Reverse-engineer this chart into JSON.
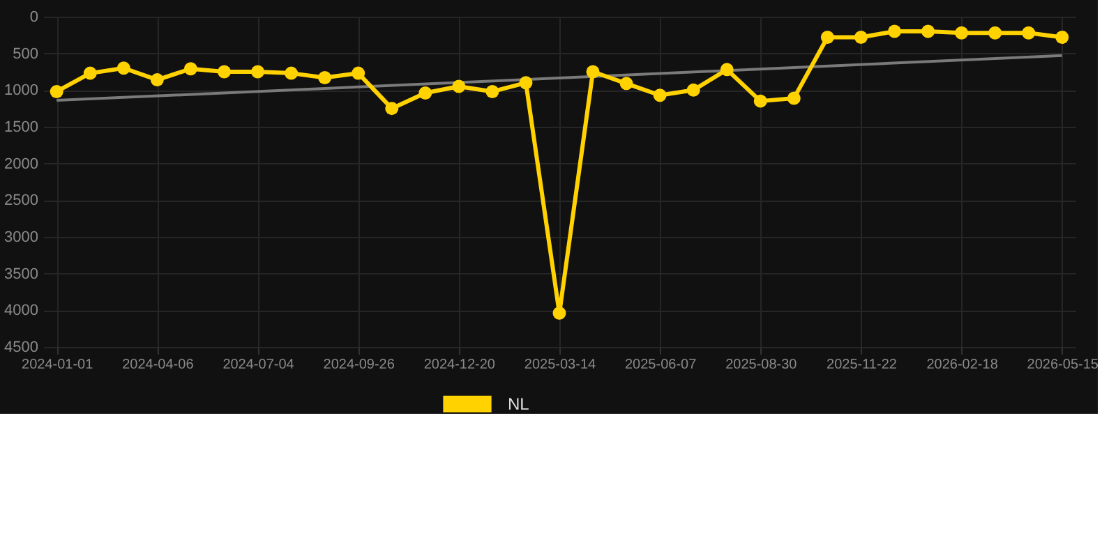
{
  "chart_data": {
    "type": "line",
    "categories": [
      "2024-01-01",
      null,
      null,
      "2024-04-06",
      null,
      null,
      "2024-07-04",
      null,
      null,
      "2024-09-26",
      null,
      null,
      "2024-12-20",
      null,
      null,
      "2025-03-14",
      null,
      null,
      "2025-06-07",
      null,
      null,
      "2025-08-30",
      null,
      null,
      "2025-11-22",
      null,
      null,
      "2026-02-18",
      null,
      null,
      "2026-05-15"
    ],
    "series": [
      {
        "name": "NL",
        "color": "#ffd200",
        "marker": "circle",
        "values": [
          1020,
          770,
          700,
          860,
          710,
          750,
          750,
          770,
          830,
          770,
          1250,
          1040,
          950,
          1020,
          900,
          4040,
          750,
          910,
          1070,
          1000,
          720,
          1150,
          1110,
          280,
          280,
          200,
          200,
          220,
          220,
          220,
          280
        ]
      },
      {
        "type": "line",
        "color": "#7a7a7a",
        "values": [
          1140,
          null,
          null,
          null,
          null,
          null,
          null,
          null,
          null,
          null,
          null,
          null,
          null,
          null,
          null,
          null,
          null,
          null,
          null,
          null,
          null,
          null,
          null,
          null,
          null,
          null,
          null,
          null,
          null,
          null,
          530
        ]
      }
    ],
    "ylim": [
      4500,
      0
    ],
    "yticks": [
      0,
      500,
      1000,
      1500,
      2000,
      2500,
      3000,
      3500,
      4000,
      4500
    ],
    "grid": true,
    "legend": "bottom"
  }
}
